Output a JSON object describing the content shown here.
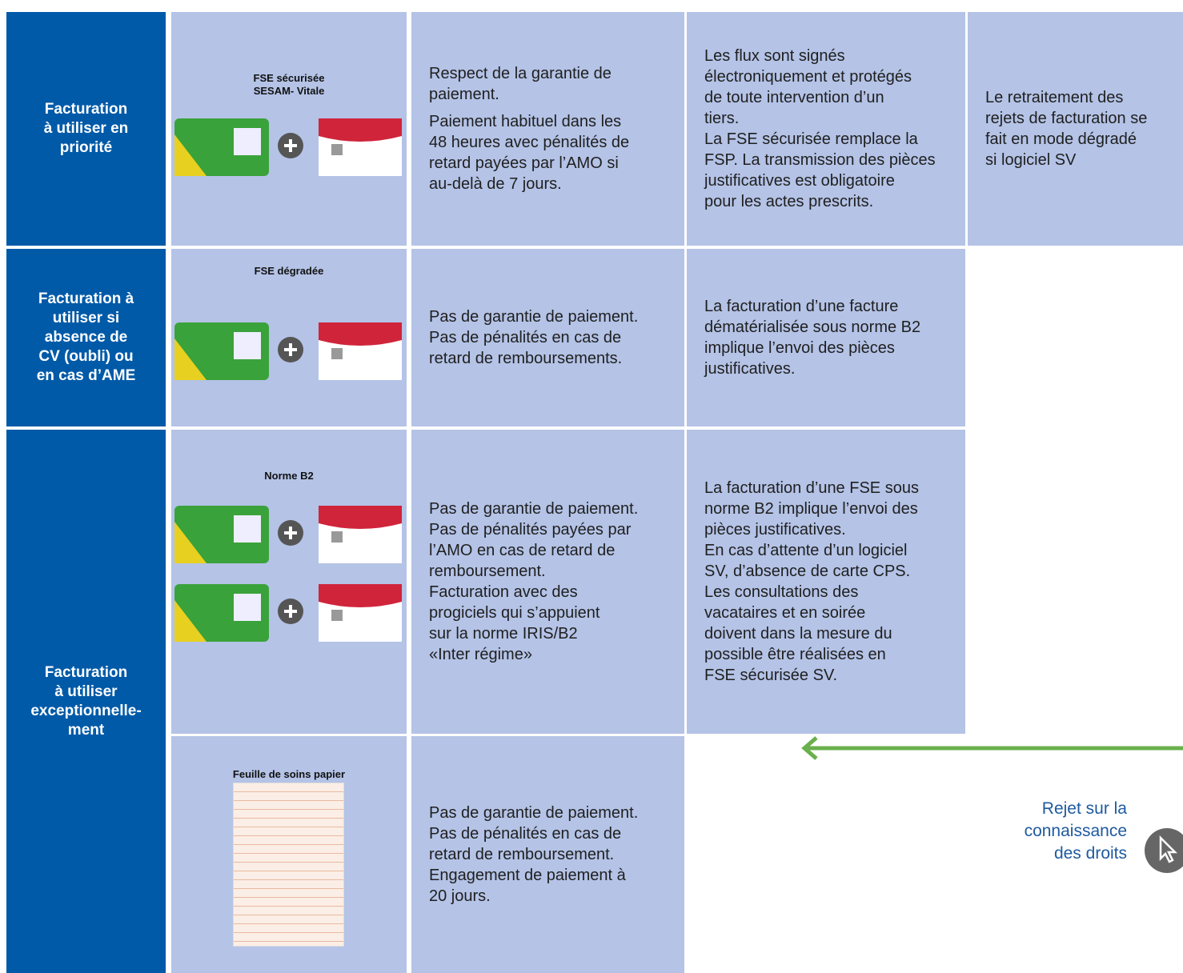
{
  "rows": [
    {
      "label": [
        "Facturation",
        "à utiliser en",
        "priorité"
      ],
      "card_title": [
        "FSE sécurisée",
        "SESAM- Vitale"
      ],
      "payment": [
        [
          "Respect de la garantie de",
          "paiement."
        ],
        [
          "Paiement habituel dans les",
          "48 heures avec pénalités de",
          "retard payées par l’AMO si",
          "au-delà de 7 jours."
        ]
      ],
      "details": [
        [
          "Les flux sont signés",
          "électroniquement et protégés",
          "de toute intervention d’un",
          "tiers.",
          "La FSE sécurisée remplace la",
          "FSP. La transmission des pièces",
          "justificatives est obligatoire",
          "pour les actes prescrits."
        ]
      ],
      "rejects": [
        "Le retraitement des",
        "rejets de facturation se",
        "fait en mode dégradé",
        "si logiciel SV"
      ]
    },
    {
      "label": [
        "Facturation à",
        "utiliser si",
        "absence de",
        "CV (oubli) ou",
        "en cas d’AME"
      ],
      "card_title": [
        "FSE dégradée"
      ],
      "payment": [
        [
          "Pas de garantie de paiement.",
          "Pas de pénalités en cas de",
          "retard de remboursements."
        ]
      ],
      "details": [
        [
          "La facturation d’une facture",
          "dématérialisée sous norme B2",
          "implique l’envoi des pièces",
          "justificatives."
        ]
      ]
    },
    {
      "label": [
        "Facturation",
        "à utiliser",
        "exceptionnelle-",
        "ment"
      ],
      "card_title": [
        "Norme B2"
      ],
      "payment": [
        [
          "Pas de garantie de paiement.",
          "Pas de pénalités payées par",
          "l’AMO en cas de retard de",
          "remboursement.",
          "Facturation avec des",
          "progiciels qui s’appuient",
          "sur la norme IRIS/B2",
          "«Inter régime»"
        ]
      ],
      "details": [
        [
          "La facturation d’une FSE sous",
          "norme B2 implique l’envoi des",
          "pièces justificatives.",
          "En cas d’attente d’un logiciel",
          "SV, d’absence de carte CPS.",
          "Les consultations des",
          "vacataires et en soirée",
          "doivent dans la mesure du",
          "possible être réalisées en",
          "FSE sécurisée SV."
        ]
      ]
    },
    {
      "card_title": [
        "Feuille de soins papier"
      ],
      "payment": [
        [
          "Pas de garantie de paiement.",
          "Pas de pénalités en cas de",
          "retard de remboursement.",
          "Engagement de paiement à",
          "20 jours."
        ]
      ]
    }
  ],
  "note": [
    "Rejet sur la",
    "connaissance",
    "des droits"
  ]
}
